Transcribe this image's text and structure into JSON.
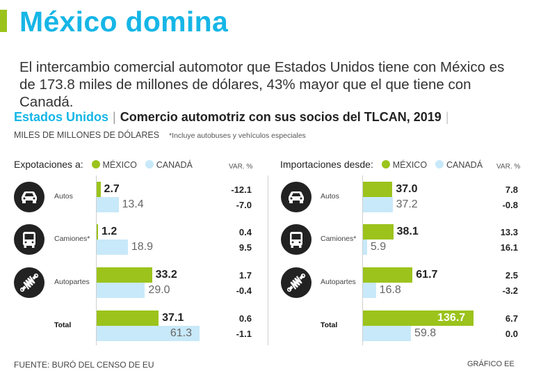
{
  "title": "México domina",
  "intro": "El intercambio comercial automotor que Estados Unidos tiene con México es de 173.8 miles de millones de dólares, 43% mayor que el que tiene con Canadá.",
  "subtitle": {
    "country": "Estados Unidos",
    "separator": "|",
    "main": "Comercio automotriz con sus socios del TLCAN, 2019",
    "trailing": "|"
  },
  "units": "MILES DE MILLONES DE DÓLARES",
  "note": "*Incluye autobuses y vehículos especiales",
  "legend": {
    "mexico": "MÉXICO",
    "canada": "CANADÁ",
    "var_header": "VAR. %"
  },
  "colors": {
    "mexico": "#9bc31c",
    "canada": "#c8e9f9",
    "title": "#16b6e6"
  },
  "icons": {
    "autos": "car-icon",
    "camiones": "bus-icon",
    "autopartes": "shock-absorber-icon"
  },
  "chart_data": [
    {
      "type": "bar",
      "orientation": "horizontal",
      "title": "Expotaciones a:",
      "categories": [
        "Autos",
        "Camiones*",
        "Autopartes",
        "Total"
      ],
      "series": [
        {
          "name": "MÉXICO",
          "values": [
            2.7,
            1.2,
            33.2,
            37.1
          ],
          "var_pct": [
            "-12.1",
            "0.4",
            "1.7",
            "0.6"
          ]
        },
        {
          "name": "CANADÁ",
          "values": [
            13.4,
            18.9,
            29.0,
            61.3
          ],
          "var_pct": [
            "-7.0",
            "9.5",
            "-0.4",
            "-1.1"
          ]
        }
      ],
      "labels": {
        "mexico": [
          "2.7",
          "1.2",
          "33.2",
          "37.1"
        ],
        "canada": [
          "13.4",
          "18.9",
          "29.0",
          "61.3"
        ]
      },
      "xlim": [
        0,
        70
      ]
    },
    {
      "type": "bar",
      "orientation": "horizontal",
      "title": "Importaciones desde:",
      "categories": [
        "Autos",
        "Camiones*",
        "Autopartes",
        "Total"
      ],
      "series": [
        {
          "name": "MÉXICO",
          "values": [
            37.0,
            38.1,
            61.7,
            136.7
          ],
          "var_pct": [
            "7.8",
            "13.3",
            "2.5",
            "6.7"
          ]
        },
        {
          "name": "CANADÁ",
          "values": [
            37.2,
            5.9,
            16.8,
            59.8
          ],
          "var_pct": [
            "-0.8",
            "16.1",
            "-3.2",
            "0.0"
          ]
        }
      ],
      "labels": {
        "mexico": [
          "37.0",
          "38.1",
          "61.7",
          "136.7"
        ],
        "canada": [
          "37.2",
          "5.9",
          "16.8",
          "59.8"
        ]
      },
      "xlim": [
        0,
        140
      ]
    }
  ],
  "footer": {
    "source": "FUENTE: BURÓ DEL CENSO DE EU",
    "credit": "GRÁFICO EE"
  }
}
